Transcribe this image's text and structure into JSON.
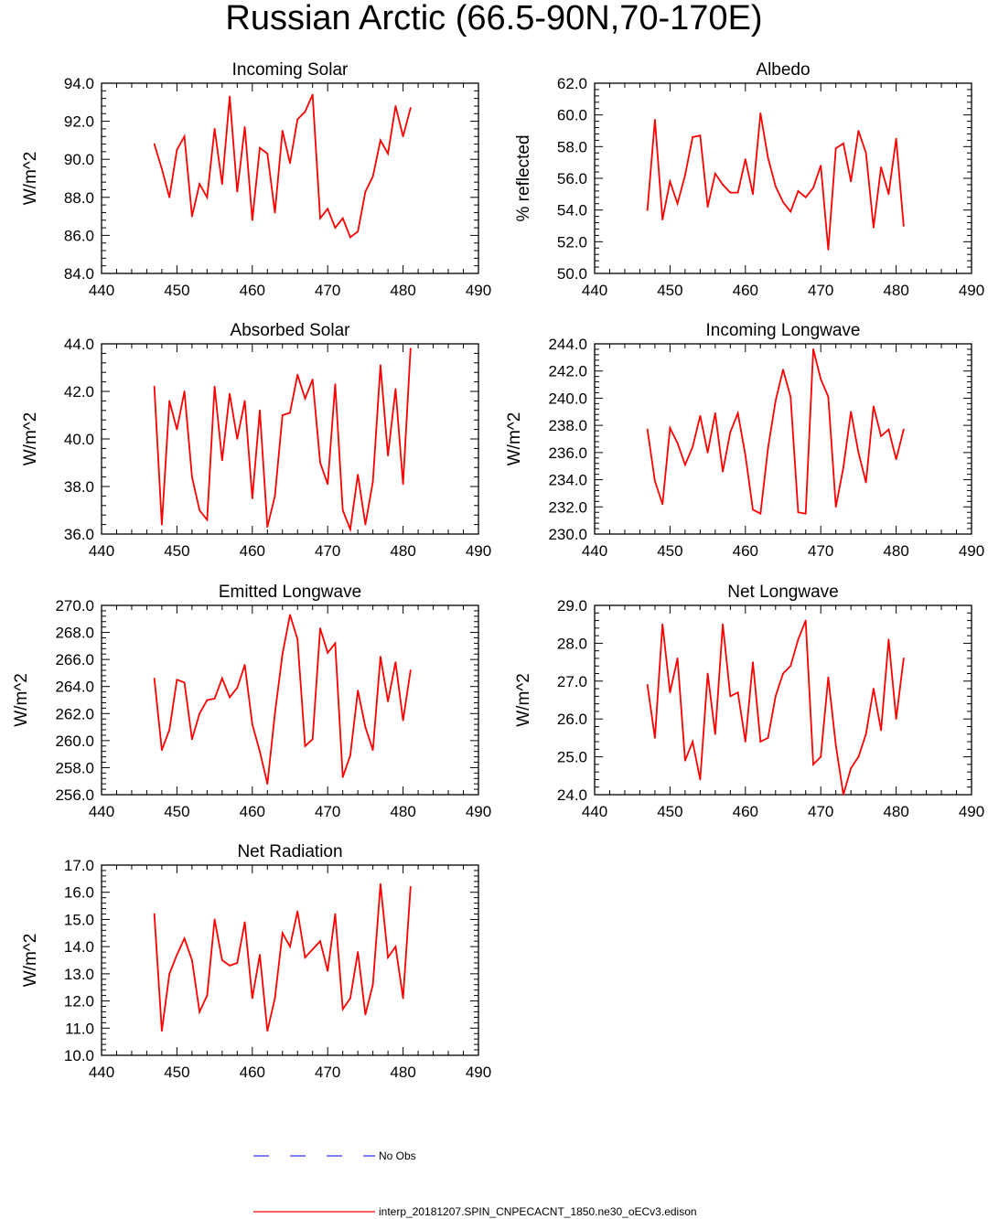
{
  "title": "Russian Arctic (66.5-90N,70-170E)",
  "legend": [
    {
      "label": "No Obs",
      "color": "#3333ff",
      "style": "dashed"
    },
    {
      "label": "interp_20181207.SPIN_CNPECACNT_1850.ne30_oECv3.edison",
      "color": "#ff0000",
      "style": "solid"
    }
  ],
  "chart_data": [
    {
      "type": "line",
      "title": "Incoming Solar",
      "ylabel": "W/m^2",
      "xlim": [
        440,
        490
      ],
      "xticks": [
        440,
        450,
        460,
        470,
        480,
        490
      ],
      "ylim": [
        84,
        94
      ],
      "yticks": [
        "84.0",
        "86.0",
        "88.0",
        "90.0",
        "92.0",
        "94.0"
      ],
      "x": [
        447,
        448,
        449,
        450,
        451,
        452,
        453,
        454,
        455,
        456,
        457,
        458,
        459,
        460,
        461,
        462,
        463,
        464,
        465,
        466,
        467,
        468,
        469,
        470,
        471,
        472,
        473,
        474,
        475,
        476,
        477,
        478,
        479,
        480,
        481
      ],
      "series": [
        {
          "name": "interp_20181207.SPIN_CNPECACNT_1850.ne30_oECv3.edison",
          "color": "#ff0000",
          "values": [
            90.8,
            89.5,
            88.0,
            90.5,
            91.2,
            87.0,
            88.7,
            88.0,
            91.6,
            88.7,
            93.3,
            88.3,
            91.7,
            86.8,
            90.6,
            90.3,
            87.2,
            91.5,
            89.8,
            92.1,
            92.5,
            93.4,
            86.9,
            87.4,
            86.4,
            86.9,
            85.9,
            86.2,
            88.3,
            89.1,
            91.0,
            90.3,
            92.8,
            91.2,
            92.7
          ]
        }
      ]
    },
    {
      "type": "line",
      "title": "Albedo",
      "ylabel": "% reflected",
      "xlim": [
        440,
        490
      ],
      "xticks": [
        440,
        450,
        460,
        470,
        480,
        490
      ],
      "ylim": [
        50,
        62
      ],
      "yticks": [
        "50.0",
        "52.0",
        "54.0",
        "56.0",
        "58.0",
        "60.0",
        "62.0"
      ],
      "x": [
        447,
        448,
        449,
        450,
        451,
        452,
        453,
        454,
        455,
        456,
        457,
        458,
        459,
        460,
        461,
        462,
        463,
        464,
        465,
        466,
        467,
        468,
        469,
        470,
        471,
        472,
        473,
        474,
        475,
        476,
        477,
        478,
        479,
        480,
        481
      ],
      "series": [
        {
          "name": "interp_20181207.SPIN_CNPECACNT_1850.ne30_oECv3.edison",
          "color": "#ff0000",
          "values": [
            54.0,
            59.7,
            53.4,
            55.8,
            54.4,
            56.2,
            58.6,
            58.7,
            54.2,
            56.3,
            55.6,
            55.1,
            55.1,
            57.2,
            55.0,
            60.1,
            57.3,
            55.5,
            54.5,
            53.9,
            55.2,
            54.8,
            55.4,
            56.8,
            51.5,
            57.9,
            58.2,
            55.8,
            59.0,
            57.6,
            52.9,
            56.7,
            55.0,
            58.5,
            53.0
          ]
        }
      ]
    },
    {
      "type": "line",
      "title": "Absorbed Solar",
      "ylabel": "W/m^2",
      "xlim": [
        440,
        490
      ],
      "xticks": [
        440,
        450,
        460,
        470,
        480,
        490
      ],
      "ylim": [
        36,
        44
      ],
      "yticks": [
        "36.0",
        "38.0",
        "40.0",
        "42.0",
        "44.0"
      ],
      "x": [
        447,
        448,
        449,
        450,
        451,
        452,
        453,
        454,
        455,
        456,
        457,
        458,
        459,
        460,
        461,
        462,
        463,
        464,
        465,
        466,
        467,
        468,
        469,
        470,
        471,
        472,
        473,
        474,
        475,
        476,
        477,
        478,
        479,
        480,
        481
      ],
      "series": [
        {
          "name": "interp_20181207.SPIN_CNPECACNT_1850.ne30_oECv3.edison",
          "color": "#ff0000",
          "values": [
            42.2,
            36.4,
            41.6,
            40.4,
            42.0,
            38.4,
            37.0,
            36.6,
            42.2,
            39.1,
            41.9,
            40.0,
            41.6,
            37.5,
            41.2,
            36.3,
            37.6,
            41.0,
            41.1,
            42.7,
            41.7,
            42.5,
            39.0,
            38.1,
            42.3,
            37.0,
            36.2,
            38.5,
            36.4,
            38.2,
            43.1,
            39.3,
            42.1,
            38.1,
            43.8
          ]
        }
      ]
    },
    {
      "type": "line",
      "title": "Incoming Longwave",
      "ylabel": "W/m^2",
      "xlim": [
        440,
        490
      ],
      "xticks": [
        440,
        450,
        460,
        470,
        480,
        490
      ],
      "ylim": [
        230,
        244
      ],
      "yticks": [
        "230.0",
        "232.0",
        "234.0",
        "236.0",
        "238.0",
        "240.0",
        "242.0",
        "244.0"
      ],
      "x": [
        447,
        448,
        449,
        450,
        451,
        452,
        453,
        454,
        455,
        456,
        457,
        458,
        459,
        460,
        461,
        462,
        463,
        464,
        465,
        466,
        467,
        468,
        469,
        470,
        471,
        472,
        473,
        474,
        475,
        476,
        477,
        478,
        479,
        480,
        481
      ],
      "series": [
        {
          "name": "interp_20181207.SPIN_CNPECACNT_1850.ne30_oECv3.edison",
          "color": "#ff0000",
          "values": [
            237.7,
            233.9,
            232.2,
            237.8,
            236.7,
            235.1,
            236.4,
            238.7,
            236.0,
            238.9,
            234.6,
            237.5,
            238.9,
            235.8,
            231.8,
            231.5,
            236.3,
            239.8,
            242.1,
            240.1,
            231.6,
            231.5,
            243.6,
            241.4,
            240.1,
            232.0,
            234.9,
            239.0,
            236.0,
            233.8,
            239.4,
            237.2,
            237.7,
            235.5,
            237.7
          ]
        }
      ]
    },
    {
      "type": "line",
      "title": "Emitted Longwave",
      "ylabel": "W/m^2",
      "xlim": [
        440,
        490
      ],
      "xticks": [
        440,
        450,
        460,
        470,
        480,
        490
      ],
      "ylim": [
        256,
        270
      ],
      "yticks": [
        "256.0",
        "258.0",
        "260.0",
        "262.0",
        "264.0",
        "266.0",
        "268.0",
        "270.0"
      ],
      "x": [
        447,
        448,
        449,
        450,
        451,
        452,
        453,
        454,
        455,
        456,
        457,
        458,
        459,
        460,
        461,
        462,
        463,
        464,
        465,
        466,
        467,
        468,
        469,
        470,
        471,
        472,
        473,
        474,
        475,
        476,
        477,
        478,
        479,
        480,
        481
      ],
      "series": [
        {
          "name": "interp_20181207.SPIN_CNPECACNT_1850.ne30_oECv3.edison",
          "color": "#ff0000",
          "values": [
            264.6,
            259.3,
            260.8,
            264.5,
            264.3,
            260.1,
            262.0,
            263.0,
            263.1,
            264.6,
            263.2,
            263.9,
            265.6,
            261.2,
            259.2,
            256.8,
            262.0,
            266.4,
            269.3,
            267.5,
            259.6,
            260.1,
            268.3,
            266.5,
            267.2,
            257.3,
            258.9,
            263.7,
            261.0,
            259.3,
            266.2,
            262.9,
            265.8,
            261.5,
            265.2
          ]
        }
      ]
    },
    {
      "type": "line",
      "title": "Net Longwave",
      "ylabel": "W/m^2",
      "xlim": [
        440,
        490
      ],
      "xticks": [
        440,
        450,
        460,
        470,
        480,
        490
      ],
      "ylim": [
        24,
        29
      ],
      "yticks": [
        "24.0",
        "25.0",
        "26.0",
        "27.0",
        "28.0",
        "29.0"
      ],
      "x": [
        447,
        448,
        449,
        450,
        451,
        452,
        453,
        454,
        455,
        456,
        457,
        458,
        459,
        460,
        461,
        462,
        463,
        464,
        465,
        466,
        467,
        468,
        469,
        470,
        471,
        472,
        473,
        474,
        475,
        476,
        477,
        478,
        479,
        480,
        481
      ],
      "series": [
        {
          "name": "interp_20181207.SPIN_CNPECACNT_1850.ne30_oECv3.edison",
          "color": "#ff0000",
          "values": [
            26.9,
            25.5,
            28.5,
            26.7,
            27.6,
            24.9,
            25.4,
            24.4,
            27.2,
            25.6,
            28.5,
            26.6,
            26.7,
            25.4,
            27.5,
            25.4,
            25.5,
            26.6,
            27.2,
            27.4,
            28.1,
            28.6,
            24.8,
            25.0,
            27.1,
            25.3,
            24.0,
            24.7,
            25.0,
            25.6,
            26.8,
            25.7,
            28.1,
            26.0,
            27.6
          ]
        }
      ]
    },
    {
      "type": "line",
      "title": "Net Radiation",
      "ylabel": "W/m^2",
      "xlim": [
        440,
        490
      ],
      "xticks": [
        440,
        450,
        460,
        470,
        480,
        490
      ],
      "ylim": [
        10,
        17
      ],
      "yticks": [
        "10.0",
        "11.0",
        "12.0",
        "13.0",
        "14.0",
        "15.0",
        "16.0",
        "17.0"
      ],
      "x": [
        447,
        448,
        449,
        450,
        451,
        452,
        453,
        454,
        455,
        456,
        457,
        458,
        459,
        460,
        461,
        462,
        463,
        464,
        465,
        466,
        467,
        468,
        469,
        470,
        471,
        472,
        473,
        474,
        475,
        476,
        477,
        478,
        479,
        480,
        481
      ],
      "series": [
        {
          "name": "interp_20181207.SPIN_CNPECACNT_1850.ne30_oECv3.edison",
          "color": "#ff0000",
          "values": [
            15.2,
            10.9,
            13.0,
            13.7,
            14.3,
            13.5,
            11.6,
            12.2,
            15.0,
            13.5,
            13.3,
            13.4,
            14.9,
            12.1,
            13.7,
            10.9,
            12.1,
            14.5,
            14.0,
            15.3,
            13.6,
            13.9,
            14.2,
            13.1,
            15.2,
            11.7,
            12.1,
            13.8,
            11.5,
            12.6,
            16.3,
            13.6,
            14.0,
            12.1,
            16.2
          ]
        }
      ]
    }
  ]
}
